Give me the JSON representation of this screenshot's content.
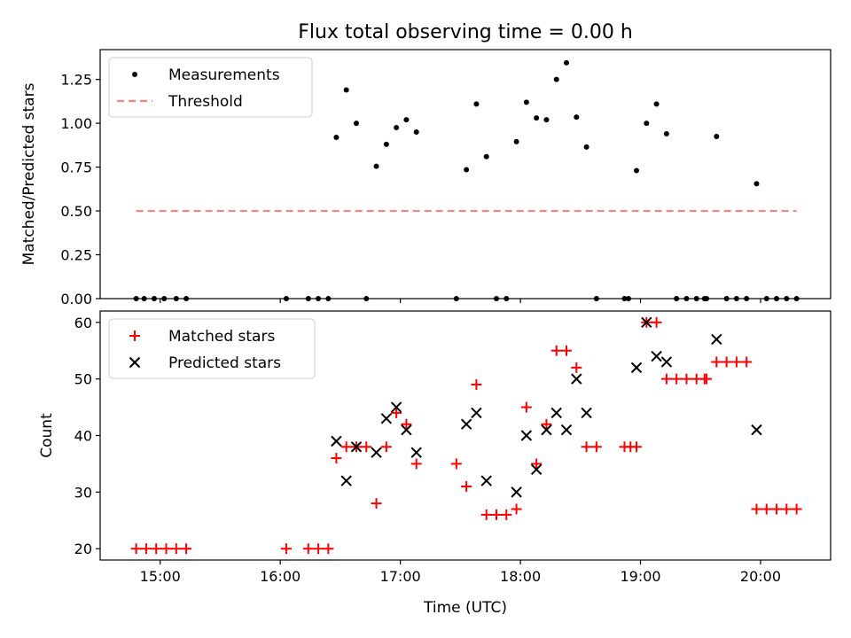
{
  "title": "Flux total observing time = 0.00 h",
  "xlabel": "Time (UTC)",
  "x_ticks": [
    "15:00",
    "16:00",
    "17:00",
    "18:00",
    "19:00",
    "20:00"
  ],
  "colors": {
    "measurement": "#000000",
    "threshold": "#ff7f7f",
    "matched": "#ff0000",
    "predicted": "#000000"
  },
  "chart_data": [
    {
      "type": "scatter",
      "ylabel": "Matched/Predicted stars",
      "xlim": [
        "14:30",
        "20:35"
      ],
      "ylim": [
        0,
        1.42
      ],
      "y_ticks": [
        "0.00",
        "0.25",
        "0.50",
        "0.75",
        "1.00",
        "1.25"
      ],
      "legend_position": "top-left",
      "series": [
        {
          "name": "Measurements",
          "marker": "dot",
          "points": [
            [
              "14:48",
              0
            ],
            [
              "14:52",
              0
            ],
            [
              "14:57",
              0
            ],
            [
              "15:02",
              0
            ],
            [
              "15:08",
              0
            ],
            [
              "15:13",
              0
            ],
            [
              "16:03",
              0
            ],
            [
              "16:14",
              0
            ],
            [
              "16:19",
              0
            ],
            [
              "16:24",
              0
            ],
            [
              "16:28",
              0.92
            ],
            [
              "16:33",
              1.19
            ],
            [
              "16:38",
              1.0
            ],
            [
              "16:43",
              0
            ],
            [
              "16:48",
              0.755
            ],
            [
              "16:53",
              0.88
            ],
            [
              "16:58",
              0.975
            ],
            [
              "17:03",
              1.02
            ],
            [
              "17:08",
              0.95
            ],
            [
              "17:28",
              0
            ],
            [
              "17:33",
              0.735
            ],
            [
              "17:38",
              1.11
            ],
            [
              "17:43",
              0.81
            ],
            [
              "17:48",
              0
            ],
            [
              "17:53",
              0
            ],
            [
              "17:58",
              0.895
            ],
            [
              "18:03",
              1.12
            ],
            [
              "18:08",
              1.03
            ],
            [
              "18:13",
              1.02
            ],
            [
              "18:18",
              1.25
            ],
            [
              "18:23",
              1.345
            ],
            [
              "18:28",
              1.035
            ],
            [
              "18:33",
              0.865
            ],
            [
              "18:38",
              0
            ],
            [
              "18:52",
              0
            ],
            [
              "18:54",
              0
            ],
            [
              "18:58",
              0.73
            ],
            [
              "19:03",
              1.0
            ],
            [
              "19:08",
              1.11
            ],
            [
              "19:13",
              0.94
            ],
            [
              "19:18",
              0
            ],
            [
              "19:23",
              0
            ],
            [
              "19:28",
              0
            ],
            [
              "19:32",
              0
            ],
            [
              "19:33",
              0
            ],
            [
              "19:38",
              0.925
            ],
            [
              "19:43",
              0
            ],
            [
              "19:48",
              0
            ],
            [
              "19:53",
              0
            ],
            [
              "19:58",
              0.655
            ],
            [
              "20:03",
              0
            ],
            [
              "20:08",
              0
            ],
            [
              "20:13",
              0
            ],
            [
              "20:18",
              0
            ]
          ]
        },
        {
          "name": "Threshold",
          "style": "dashed",
          "points": [
            [
              "14:48",
              0.5
            ],
            [
              "20:18",
              0.5
            ]
          ]
        }
      ]
    },
    {
      "type": "scatter",
      "ylabel": "Count",
      "xlim": [
        "14:30",
        "20:35"
      ],
      "ylim": [
        18,
        62
      ],
      "y_ticks": [
        "20",
        "30",
        "40",
        "50",
        "60"
      ],
      "legend_position": "top-left",
      "series": [
        {
          "name": "Matched stars",
          "marker": "plus",
          "points": [
            [
              "14:48",
              20
            ],
            [
              "14:53",
              20
            ],
            [
              "14:58",
              20
            ],
            [
              "15:03",
              20
            ],
            [
              "15:08",
              20
            ],
            [
              "15:13",
              20
            ],
            [
              "16:03",
              20
            ],
            [
              "16:14",
              20
            ],
            [
              "16:19",
              20
            ],
            [
              "16:24",
              20
            ],
            [
              "16:28",
              36
            ],
            [
              "16:33",
              38
            ],
            [
              "16:38",
              38
            ],
            [
              "16:43",
              38
            ],
            [
              "16:48",
              28
            ],
            [
              "16:53",
              38
            ],
            [
              "16:58",
              44
            ],
            [
              "17:03",
              42
            ],
            [
              "17:08",
              35
            ],
            [
              "17:28",
              35
            ],
            [
              "17:33",
              31
            ],
            [
              "17:38",
              49
            ],
            [
              "17:43",
              26
            ],
            [
              "17:48",
              26
            ],
            [
              "17:53",
              26
            ],
            [
              "17:58",
              27
            ],
            [
              "18:03",
              45
            ],
            [
              "18:08",
              35
            ],
            [
              "18:13",
              42
            ],
            [
              "18:18",
              55
            ],
            [
              "18:23",
              55
            ],
            [
              "18:28",
              52
            ],
            [
              "18:33",
              38
            ],
            [
              "18:38",
              38
            ],
            [
              "18:52",
              38
            ],
            [
              "18:55",
              38
            ],
            [
              "18:58",
              38
            ],
            [
              "19:03",
              60
            ],
            [
              "19:08",
              60
            ],
            [
              "19:13",
              50
            ],
            [
              "19:18",
              50
            ],
            [
              "19:23",
              50
            ],
            [
              "19:28",
              50
            ],
            [
              "19:32",
              50
            ],
            [
              "19:33",
              50
            ],
            [
              "19:38",
              53
            ],
            [
              "19:43",
              53
            ],
            [
              "19:48",
              53
            ],
            [
              "19:53",
              53
            ],
            [
              "19:58",
              27
            ],
            [
              "20:03",
              27
            ],
            [
              "20:08",
              27
            ],
            [
              "20:13",
              27
            ],
            [
              "20:18",
              27
            ]
          ]
        },
        {
          "name": "Predicted stars",
          "marker": "x",
          "points": [
            [
              "16:28",
              39
            ],
            [
              "16:33",
              32
            ],
            [
              "16:38",
              38
            ],
            [
              "16:48",
              37
            ],
            [
              "16:53",
              43
            ],
            [
              "16:58",
              45
            ],
            [
              "17:03",
              41
            ],
            [
              "17:08",
              37
            ],
            [
              "17:33",
              42
            ],
            [
              "17:38",
              44
            ],
            [
              "17:43",
              32
            ],
            [
              "17:58",
              30
            ],
            [
              "18:03",
              40
            ],
            [
              "18:08",
              34
            ],
            [
              "18:13",
              41
            ],
            [
              "18:18",
              44
            ],
            [
              "18:23",
              41
            ],
            [
              "18:28",
              50
            ],
            [
              "18:33",
              44
            ],
            [
              "18:58",
              52
            ],
            [
              "19:03",
              60
            ],
            [
              "19:08",
              54
            ],
            [
              "19:13",
              53
            ],
            [
              "19:38",
              57
            ],
            [
              "19:58",
              41
            ]
          ]
        }
      ]
    }
  ]
}
